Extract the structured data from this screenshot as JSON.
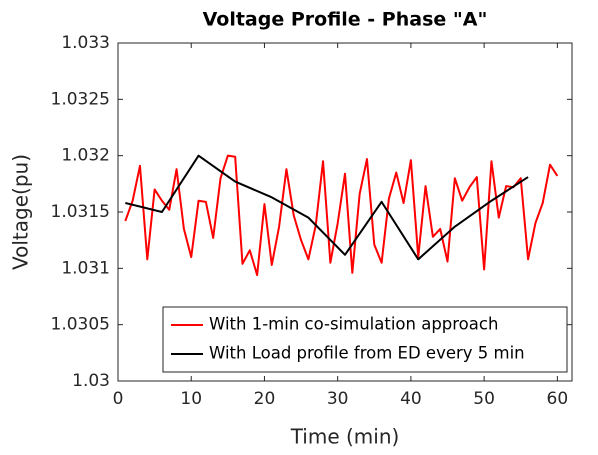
{
  "chart_data": {
    "type": "line",
    "title": "Voltage Profile - Phase \"A\"",
    "xlabel": "Time (min)",
    "ylabel": "Voltage(pu)",
    "xlim": [
      0,
      62
    ],
    "xticks": [
      0,
      10,
      20,
      30,
      40,
      50,
      60
    ],
    "ylim": [
      1.03,
      1.033
    ],
    "yticks": [
      1.03,
      1.0305,
      1.031,
      1.0315,
      1.032,
      1.0325,
      1.033
    ],
    "grid": false,
    "legend": "lower right",
    "series": [
      {
        "name": "With 1-min co-simulation approach",
        "color": "#ff0000",
        "x": [
          1,
          2,
          3,
          4,
          5,
          6,
          7,
          8,
          9,
          10,
          11,
          12,
          13,
          14,
          15,
          16,
          17,
          18,
          19,
          20,
          21,
          22,
          23,
          24,
          25,
          26,
          27,
          28,
          29,
          30,
          31,
          32,
          33,
          34,
          35,
          36,
          37,
          38,
          39,
          40,
          41,
          42,
          43,
          44,
          45,
          46,
          47,
          48,
          49,
          50,
          51,
          52,
          53,
          54,
          55,
          56,
          57,
          58,
          59,
          60
        ],
        "values": [
          1.03142,
          1.0316,
          1.03191,
          1.03108,
          1.0317,
          1.0316,
          1.03152,
          1.03188,
          1.03135,
          1.0311,
          1.0316,
          1.03159,
          1.03127,
          1.0318,
          1.032,
          1.03199,
          1.03104,
          1.03116,
          1.03094,
          1.03157,
          1.03103,
          1.03137,
          1.03188,
          1.03147,
          1.03125,
          1.03108,
          1.03138,
          1.03195,
          1.03105,
          1.0314,
          1.03184,
          1.03096,
          1.03166,
          1.03197,
          1.03121,
          1.03105,
          1.03162,
          1.03185,
          1.03158,
          1.03196,
          1.0311,
          1.03173,
          1.03128,
          1.03135,
          1.03106,
          1.0318,
          1.0316,
          1.03172,
          1.03181,
          1.03099,
          1.03195,
          1.03145,
          1.03173,
          1.03172,
          1.0318,
          1.03108,
          1.0314,
          1.03158,
          1.03192,
          1.03182
        ]
      },
      {
        "name": "With Load profile from ED every 5 min",
        "color": "#000000",
        "x": [
          1,
          6,
          11,
          16,
          21,
          26,
          31,
          36,
          41,
          46,
          51,
          56
        ],
        "values": [
          1.03158,
          1.0315,
          1.032,
          1.03177,
          1.03163,
          1.03145,
          1.03112,
          1.03159,
          1.03108,
          1.03137,
          1.0316,
          1.03181
        ]
      }
    ]
  }
}
